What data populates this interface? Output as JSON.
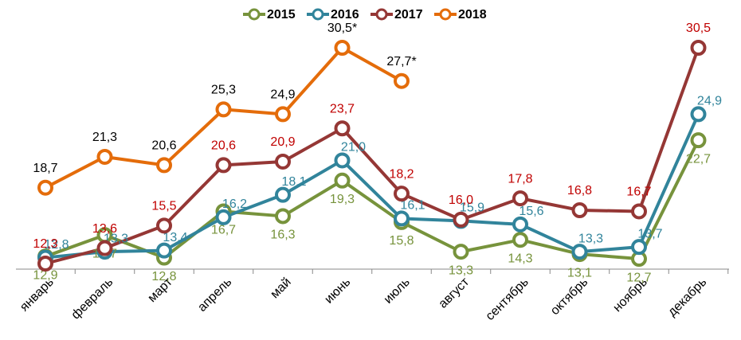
{
  "chart_data": {
    "type": "line",
    "categories": [
      "январь",
      "февраль",
      "март",
      "апрель",
      "май",
      "июнь",
      "июль",
      "август",
      "сентябрь",
      "октябрь",
      "ноябрь",
      "декабрь"
    ],
    "series": [
      {
        "name": "2015",
        "color": "#77933c",
        "label_color": "#77933c",
        "values": [
          12.9,
          14.7,
          12.8,
          16.7,
          16.3,
          19.3,
          15.8,
          13.3,
          14.3,
          13.1,
          12.7,
          22.7
        ],
        "value_labels": [
          "12,9",
          "14,7",
          "12,8",
          "16,7",
          "16,3",
          "19,3",
          "15,8",
          "13,3",
          "14,3",
          "13,1",
          "12,7",
          "22,7"
        ]
      },
      {
        "name": "2016",
        "color": "#31849b",
        "label_color": "#31849b",
        "values": [
          12.8,
          13.3,
          13.4,
          16.2,
          18.1,
          21.0,
          16.1,
          15.9,
          15.6,
          13.3,
          13.7,
          24.9
        ],
        "value_labels": [
          "12,8",
          "13,3",
          "13,4",
          "16,2",
          "18,1",
          "21,0",
          "16,1",
          "15,9",
          "15,6",
          "13,3",
          "13,7",
          "24,9"
        ]
      },
      {
        "name": "2017",
        "color": "#953735",
        "label_color": "#c00000",
        "values": [
          12.3,
          13.6,
          15.5,
          20.6,
          20.9,
          23.7,
          18.2,
          16.0,
          17.8,
          16.8,
          16.7,
          30.5
        ],
        "value_labels": [
          "12,3",
          "13,6",
          "15,5",
          "20,6",
          "20,9",
          "23,7",
          "18,2",
          "16,0",
          "17,8",
          "16,8",
          "16,7",
          "30,5"
        ]
      },
      {
        "name": "2018",
        "color": "#e46c0a",
        "label_color": "#000000",
        "values": [
          18.7,
          21.3,
          20.6,
          25.3,
          24.9,
          30.5,
          27.7,
          null,
          null,
          null,
          null,
          null
        ],
        "value_labels": [
          "18,7",
          "21,3",
          "20,6",
          "25,3",
          "24,9",
          "30,5*",
          "27,7*",
          null,
          null,
          null,
          null,
          null
        ]
      }
    ],
    "legend_position": "top"
  }
}
